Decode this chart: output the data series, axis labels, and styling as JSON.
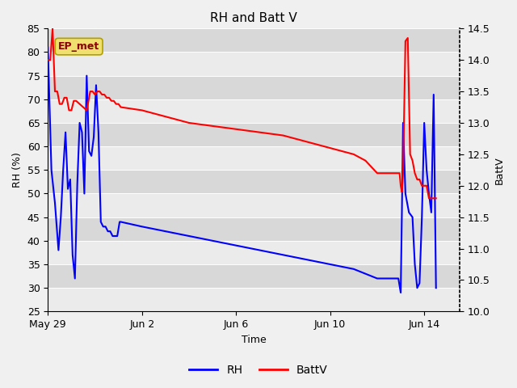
{
  "title": "RH and Batt V",
  "xlabel": "Time",
  "ylabel_left": "RH (%)",
  "ylabel_right": "BattV",
  "ylim_left": [
    25,
    85
  ],
  "ylim_right": [
    10.0,
    14.5
  ],
  "label_text": "EP_met",
  "legend_labels": [
    "RH",
    "BattV"
  ],
  "rh_x": [
    0.0,
    0.15,
    0.3,
    0.45,
    0.55,
    0.65,
    0.75,
    0.85,
    0.95,
    1.05,
    1.15,
    1.25,
    1.35,
    1.45,
    1.55,
    1.65,
    1.75,
    1.85,
    1.95,
    2.05,
    2.15,
    2.25,
    2.35,
    2.45,
    2.55,
    2.65,
    2.75,
    2.85,
    2.95,
    3.05,
    3.1,
    4.0,
    5.0,
    6.0,
    7.0,
    8.0,
    9.0,
    10.0,
    11.0,
    12.0,
    13.0,
    14.0,
    14.9,
    15.0,
    15.05,
    15.1,
    15.2,
    15.35,
    15.5,
    15.6,
    15.7,
    15.8,
    15.9,
    16.0,
    16.1,
    16.2,
    16.3,
    16.4,
    16.5
  ],
  "rh_y": [
    81,
    55,
    48,
    38,
    45,
    55,
    63,
    51,
    53,
    37,
    32,
    52,
    65,
    63,
    50,
    75,
    59,
    58,
    62,
    73,
    63,
    44,
    43,
    43,
    42,
    42,
    41,
    41,
    41,
    44,
    44,
    43,
    42,
    41,
    40,
    39,
    38,
    37,
    36,
    35,
    34,
    32,
    32,
    29,
    46,
    65,
    50,
    46,
    45,
    35,
    30,
    31,
    45,
    65,
    55,
    50,
    46,
    71,
    30
  ],
  "battv_x": [
    0.0,
    0.1,
    0.2,
    0.3,
    0.4,
    0.5,
    0.6,
    0.7,
    0.8,
    0.9,
    1.0,
    1.1,
    1.2,
    1.35,
    1.5,
    1.65,
    1.8,
    1.9,
    2.0,
    2.1,
    2.15,
    2.2,
    2.3,
    2.4,
    2.5,
    2.6,
    2.7,
    2.8,
    2.9,
    3.0,
    3.1,
    4.0,
    5.0,
    6.0,
    7.0,
    8.0,
    9.0,
    10.0,
    11.0,
    12.0,
    12.5,
    13.0,
    13.5,
    14.0,
    14.5,
    14.9,
    14.95,
    15.0,
    15.05,
    15.1,
    15.2,
    15.3,
    15.4,
    15.5,
    15.6,
    15.7,
    15.8,
    15.9,
    16.0,
    16.1,
    16.2,
    16.3,
    16.4,
    16.5
  ],
  "battv_y": [
    14.0,
    14.0,
    14.5,
    13.5,
    13.5,
    13.3,
    13.3,
    13.4,
    13.4,
    13.2,
    13.2,
    13.35,
    13.35,
    13.3,
    13.25,
    13.2,
    13.5,
    13.5,
    13.45,
    13.5,
    13.5,
    13.5,
    13.45,
    13.45,
    13.4,
    13.4,
    13.35,
    13.35,
    13.3,
    13.3,
    13.25,
    13.2,
    13.1,
    13.0,
    12.95,
    12.9,
    12.85,
    12.8,
    12.7,
    12.6,
    12.55,
    12.5,
    12.4,
    12.2,
    12.2,
    12.2,
    12.2,
    12.0,
    11.9,
    12.2,
    14.3,
    14.35,
    12.5,
    12.4,
    12.2,
    12.1,
    12.1,
    12.0,
    12.0,
    12.0,
    11.8,
    11.8,
    11.8,
    11.8
  ],
  "x_tick_positions": [
    0,
    4,
    8,
    12,
    16
  ],
  "x_tick_labels": [
    "May 29",
    "Jun 2",
    "Jun 6",
    "Jun 10",
    "Jun 14"
  ],
  "xlim": [
    0,
    17.5
  ],
  "band_colors": [
    "#ebebeb",
    "#d8d8d8"
  ],
  "fig_bg": "#f0f0f0",
  "title_fontsize": 11,
  "label_fontsize": 9
}
